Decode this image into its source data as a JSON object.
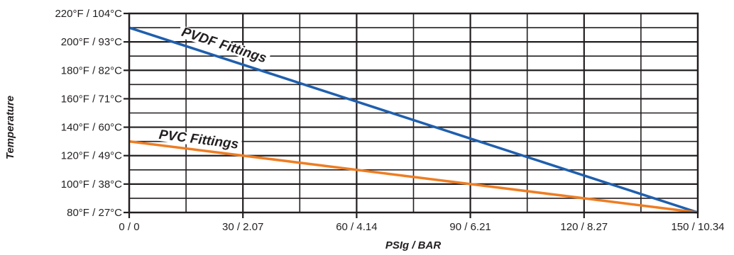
{
  "chart_data": {
    "type": "line",
    "xlabel": "PSIg / BAR",
    "ylabel": "Temperature",
    "xlim": [
      0,
      150
    ],
    "ylim": [
      80,
      220
    ],
    "x_ticks": [
      {
        "value": 0,
        "label": "0 / 0"
      },
      {
        "value": 30,
        "label": "30 / 2.07"
      },
      {
        "value": 60,
        "label": "60 / 4.14"
      },
      {
        "value": 90,
        "label": "90 / 6.21"
      },
      {
        "value": 120,
        "label": "120 / 8.27"
      },
      {
        "value": 150,
        "label": "150 / 10.34"
      }
    ],
    "y_ticks": [
      {
        "value": 80,
        "label": "80°F / 27°C"
      },
      {
        "value": 100,
        "label": "100°F / 38°C"
      },
      {
        "value": 120,
        "label": "120°F / 49°C"
      },
      {
        "value": 140,
        "label": "140°F / 60°C"
      },
      {
        "value": 160,
        "label": "160°F / 71°C"
      },
      {
        "value": 180,
        "label": "180°F / 82°C"
      },
      {
        "value": 200,
        "label": "200°F / 93°C"
      },
      {
        "value": 220,
        "label": "220°F / 104°C"
      }
    ],
    "grid": true,
    "series": [
      {
        "name": "PVDF Fittings",
        "color": "#1f5fae",
        "x": [
          0,
          150
        ],
        "y": [
          210,
          80
        ]
      },
      {
        "name": "PVC Fittings",
        "color": "#ee7d22",
        "x": [
          0,
          150
        ],
        "y": [
          130,
          80
        ]
      }
    ]
  }
}
